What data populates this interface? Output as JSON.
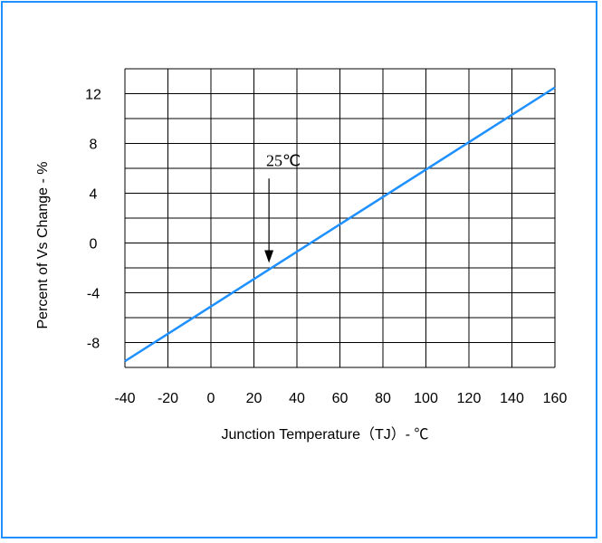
{
  "chart_data": {
    "type": "line",
    "title": "",
    "xlabel": "Junction Temperature（TJ）- ℃",
    "ylabel": "Percent of Vs Change - %",
    "x_ticks": [
      "-40",
      "-20",
      "0",
      "20",
      "40",
      "60",
      "80",
      "100",
      "120",
      "140",
      "160"
    ],
    "y_ticks": [
      "12",
      "8",
      "4",
      "0",
      "-4",
      "-8"
    ],
    "xlim": [
      -40,
      160
    ],
    "ylim": [
      -10,
      14
    ],
    "grid": true,
    "series": [
      {
        "x": [
          -40,
          160
        ],
        "y": [
          -9.5,
          12.5
        ],
        "color": "#1e90ff"
      }
    ],
    "annotations": [
      {
        "text": "25℃",
        "x": 27,
        "y": 6.2,
        "arrow_to": [
          27,
          -1.6
        ]
      }
    ],
    "colors": {
      "frame": "#1e90ff",
      "line": "#1e90ff",
      "grid": "#000000"
    }
  }
}
